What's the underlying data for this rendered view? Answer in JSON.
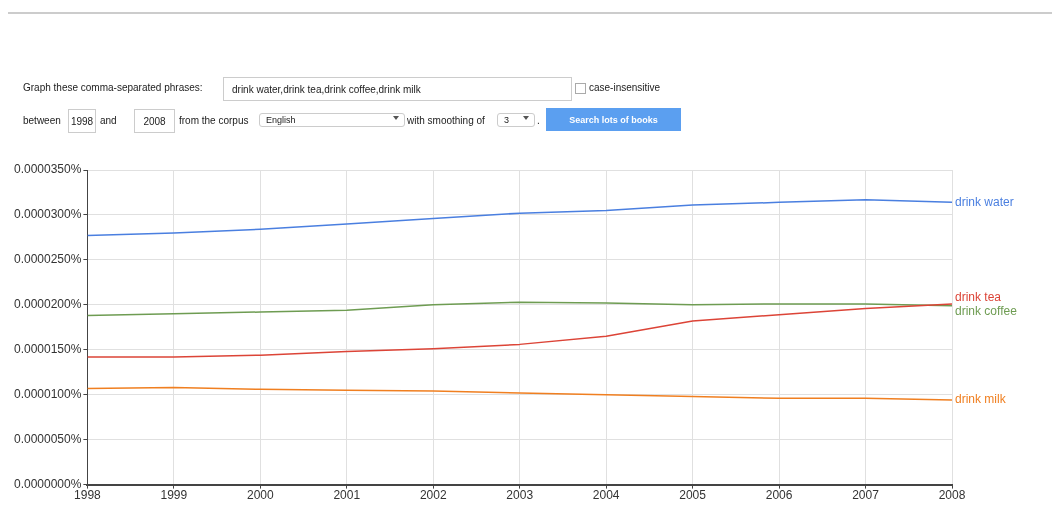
{
  "chart_data": {
    "type": "line",
    "x": [
      1998,
      1999,
      2000,
      2001,
      2002,
      2003,
      2004,
      2005,
      2006,
      2007,
      2008
    ],
    "series": [
      {
        "name": "drink water",
        "color": "#4a7fe0",
        "values": [
          2.77e-05,
          2.8e-05,
          2.84e-05,
          2.9e-05,
          2.96e-05,
          3.02e-05,
          3.05e-05,
          3.11e-05,
          3.14e-05,
          3.17e-05,
          3.14e-05
        ]
      },
      {
        "name": "drink tea",
        "color": "#dc4437",
        "values": [
          1.42e-05,
          1.42e-05,
          1.44e-05,
          1.48e-05,
          1.51e-05,
          1.56e-05,
          1.65e-05,
          1.82e-05,
          1.89e-05,
          1.96e-05,
          2.01e-05
        ]
      },
      {
        "name": "drink coffee",
        "color": "#6e9c52",
        "values": [
          1.88e-05,
          1.9e-05,
          1.92e-05,
          1.94e-05,
          2e-05,
          2.03e-05,
          2.02e-05,
          2e-05,
          2.01e-05,
          2.01e-05,
          1.99e-05
        ]
      },
      {
        "name": "drink milk",
        "color": "#f07f20",
        "values": [
          1.07e-05,
          1.08e-05,
          1.06e-05,
          1.05e-05,
          1.04e-05,
          1.02e-05,
          1e-05,
          9.8e-06,
          9.6e-06,
          9.6e-06,
          9.4e-06
        ]
      }
    ],
    "xlim": [
      1998,
      2008
    ],
    "xticks": [
      1998,
      1999,
      2000,
      2001,
      2002,
      2003,
      2004,
      2005,
      2006,
      2007,
      2008
    ],
    "ylim": [
      0,
      3.5e-05
    ],
    "yticks": [
      {
        "value": 0,
        "label": "0.0000000%"
      },
      {
        "value": 5e-06,
        "label": "0.0000050%"
      },
      {
        "value": 1e-05,
        "label": "0.0000100%"
      },
      {
        "value": 1.5e-05,
        "label": "0.0000150%"
      },
      {
        "value": 2e-05,
        "label": "0.0000200%"
      },
      {
        "value": 2.5e-05,
        "label": "0.0000250%"
      },
      {
        "value": 3e-05,
        "label": "0.0000300%"
      },
      {
        "value": 3.5e-05,
        "label": "0.0000350%"
      }
    ],
    "grid": true,
    "legend": false,
    "marker": "none",
    "line_style": "solid",
    "annotations": [
      "Graph these comma-separated phrases:",
      "drink water,drink tea,drink coffee,drink milk",
      "case-insensitive",
      "between",
      "1998",
      "and",
      "2008",
      "from the corpus",
      "English",
      "with smoothing of",
      "3",
      ".",
      "Search lots of books"
    ]
  }
}
